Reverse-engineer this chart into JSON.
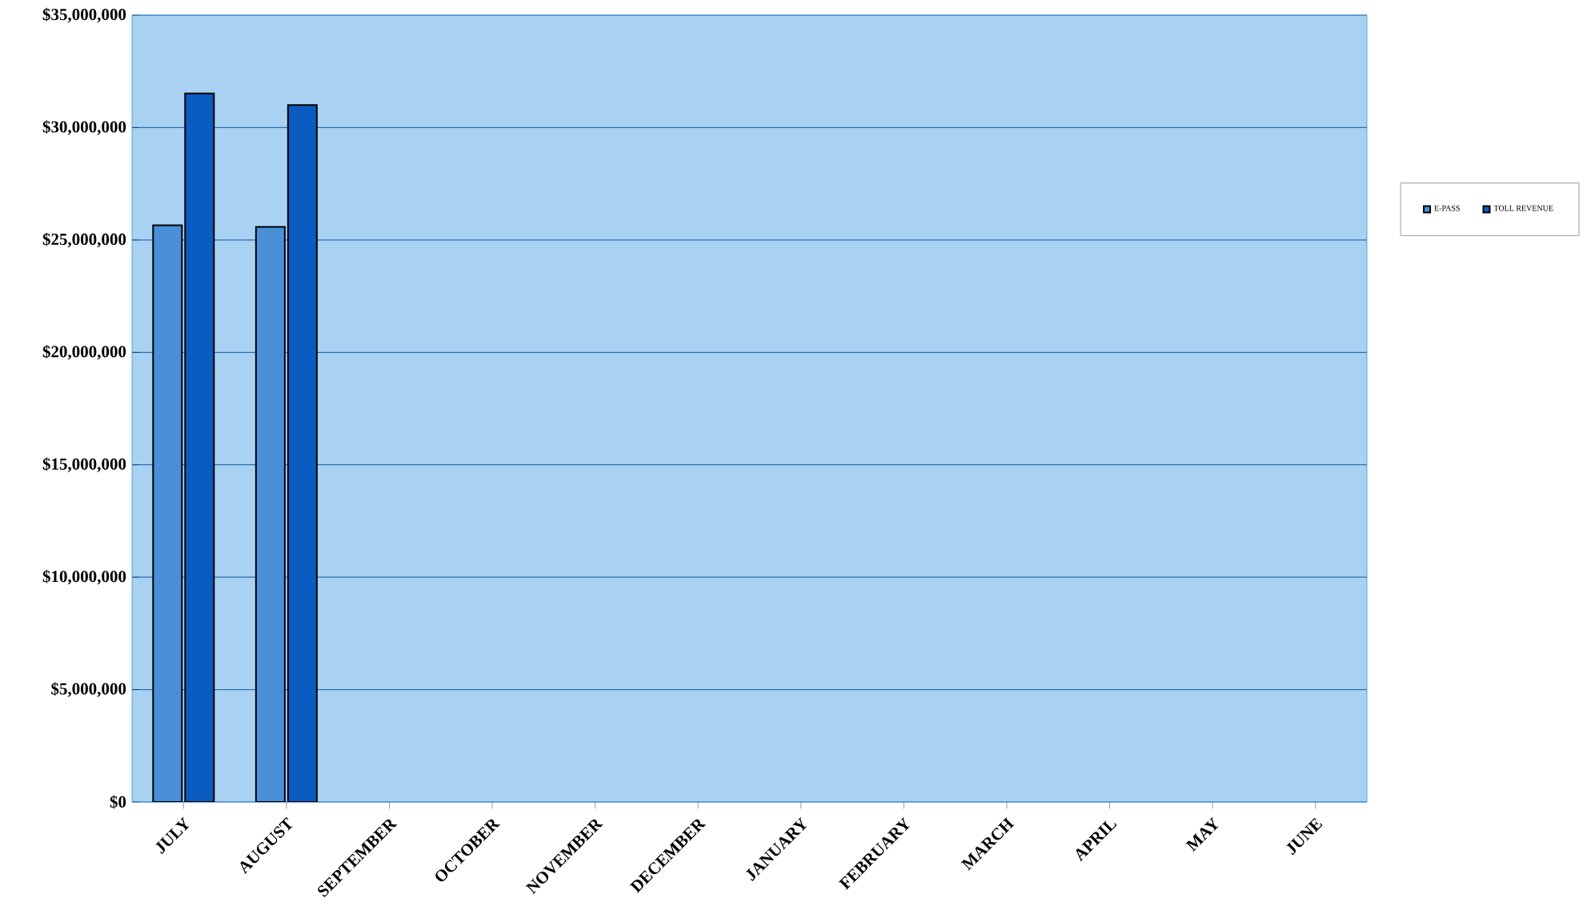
{
  "chart_data": {
    "type": "bar",
    "categories": [
      "JULY",
      "AUGUST",
      "SEPTEMBER",
      "OCTOBER",
      "NOVEMBER",
      "DECEMBER",
      "JANUARY",
      "FEBRUARY",
      "MARCH",
      "APRIL",
      "MAY",
      "JUNE"
    ],
    "series": [
      {
        "name": "E-PASS",
        "color": "#4a90d9",
        "values": [
          25650000,
          25580000,
          null,
          null,
          null,
          null,
          null,
          null,
          null,
          null,
          null,
          null
        ]
      },
      {
        "name": "TOLL REVENUE",
        "color": "#0a5cc0",
        "values": [
          31520000,
          31000000,
          null,
          null,
          null,
          null,
          null,
          null,
          null,
          null,
          null,
          null
        ]
      }
    ],
    "ylim": [
      0,
      35000000
    ],
    "yticks": [
      {
        "value": 0,
        "label": "$0"
      },
      {
        "value": 5000000,
        "label": "$5,000,000"
      },
      {
        "value": 10000000,
        "label": "$10,000,000"
      },
      {
        "value": 15000000,
        "label": "$15,000,000"
      },
      {
        "value": 20000000,
        "label": "$20,000,000"
      },
      {
        "value": 25000000,
        "label": "$25,000,000"
      },
      {
        "value": 30000000,
        "label": "$30,000,000"
      },
      {
        "value": 35000000,
        "label": "$35,000,000"
      }
    ],
    "grid": "y",
    "legend": "right"
  }
}
